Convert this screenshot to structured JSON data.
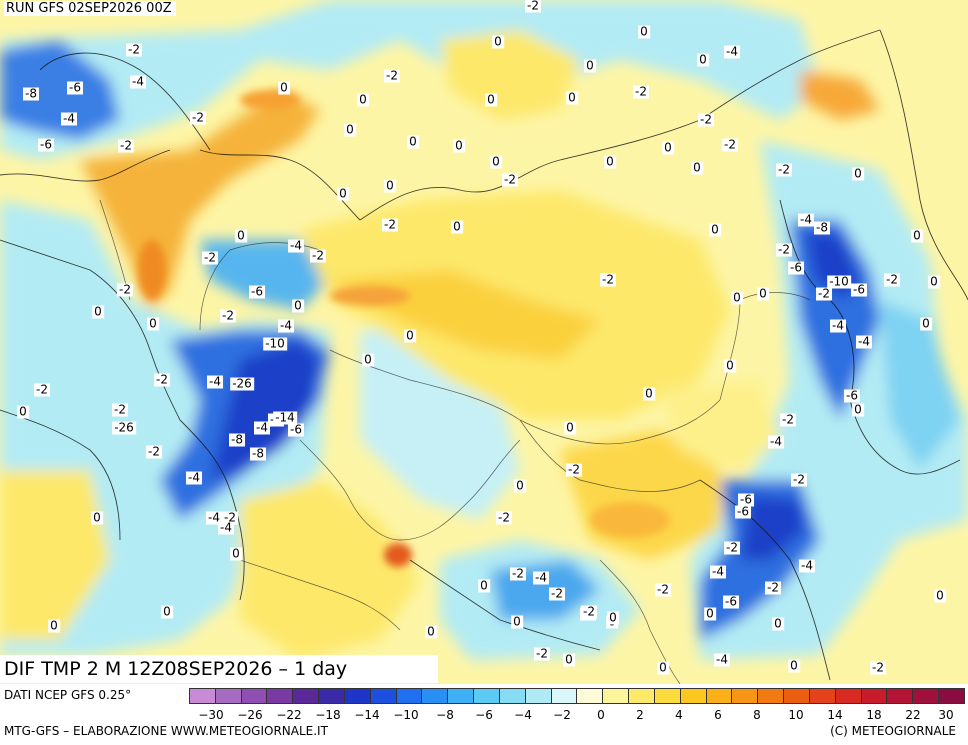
{
  "header": {
    "run_label": "RUN GFS 02SEP2026 00Z"
  },
  "field_title": "DIF TMP 2 M 12Z08SEP2026 – 1 day",
  "footer": {
    "source": "DATI NCEP GFS 0.25°",
    "credit": "MTG-GFS – ELABORAZIONE WWW.METEOGIORNALE.IT",
    "copyright": "(C) METEOGIORNALE"
  },
  "legend": {
    "colors": [
      "#c78bd6",
      "#a66cc2",
      "#8f4fb2",
      "#7a3aa3",
      "#5a2a9a",
      "#3a2aa8",
      "#1f34c8",
      "#1e50e0",
      "#1f6ff0",
      "#2a8ff5",
      "#3fb0f5",
      "#5ccaf2",
      "#86dcf2",
      "#b0eaf5",
      "#d9f6f8",
      "#fdfcd8",
      "#fdf59a",
      "#fde96a",
      "#fcdc3c",
      "#fcc81f",
      "#f9b019",
      "#f79616",
      "#f17a12",
      "#eb5e10",
      "#e3421a",
      "#d82a22",
      "#c81c2c",
      "#b41434",
      "#a0103c",
      "#8a0c40"
    ],
    "tick_labels": [
      "-30",
      "-26",
      "-22",
      "-18",
      "-14",
      "-10",
      "-8",
      "-6",
      "-4",
      "-2",
      "0",
      "2",
      "4",
      "6",
      "8",
      "10",
      "14",
      "18",
      "22",
      "30"
    ]
  },
  "map": {
    "labels": [
      {
        "text": "-2"
      },
      {
        "text": "-2"
      },
      {
        "text": "0"
      },
      {
        "text": "-2"
      },
      {
        "text": "0"
      },
      {
        "text": "-4"
      },
      {
        "text": "0"
      },
      {
        "text": "-4"
      },
      {
        "text": "0"
      },
      {
        "text": "-8"
      },
      {
        "text": "-6"
      },
      {
        "text": "-2"
      },
      {
        "text": "0"
      },
      {
        "text": "-4"
      },
      {
        "text": "0"
      },
      {
        "text": "-2"
      },
      {
        "text": "0"
      },
      {
        "text": "-2"
      },
      {
        "text": "0"
      },
      {
        "text": "-2"
      },
      {
        "text": "0"
      },
      {
        "text": "-6"
      },
      {
        "text": "-2"
      },
      {
        "text": "0"
      },
      {
        "text": "0"
      },
      {
        "text": "-2"
      },
      {
        "text": "0"
      },
      {
        "text": "0"
      },
      {
        "text": "-2"
      },
      {
        "text": "0"
      },
      {
        "text": "0"
      },
      {
        "text": "-2"
      },
      {
        "text": "0"
      },
      {
        "text": "0"
      },
      {
        "text": "-4"
      },
      {
        "text": "-8"
      },
      {
        "text": "0"
      },
      {
        "text": "-2"
      },
      {
        "text": "0"
      },
      {
        "text": "0"
      },
      {
        "text": "-2"
      },
      {
        "text": "0"
      },
      {
        "text": "-2"
      },
      {
        "text": "0"
      },
      {
        "text": "-4"
      },
      {
        "text": "-2"
      },
      {
        "text": "-2"
      },
      {
        "text": "-6"
      },
      {
        "text": "0"
      },
      {
        "text": "-2"
      },
      {
        "text": "-2"
      },
      {
        "text": "-10"
      },
      {
        "text": "0"
      },
      {
        "text": "0"
      },
      {
        "text": "-6"
      },
      {
        "text": "0"
      },
      {
        "text": "-6"
      },
      {
        "text": "0"
      },
      {
        "text": "0"
      },
      {
        "text": "0"
      },
      {
        "text": "0"
      },
      {
        "text": "-4"
      },
      {
        "text": "-2"
      },
      {
        "text": "-4"
      },
      {
        "text": "-10"
      },
      {
        "text": "0"
      },
      {
        "text": "0"
      },
      {
        "text": "-4"
      },
      {
        "text": "-2"
      },
      {
        "text": "-4"
      },
      {
        "text": "-26"
      },
      {
        "text": "-6"
      },
      {
        "text": "0"
      },
      {
        "text": "-2"
      },
      {
        "text": "0"
      },
      {
        "text": "-2"
      },
      {
        "text": "-4"
      },
      {
        "text": "-14"
      },
      {
        "text": "-2"
      },
      {
        "text": "-26"
      },
      {
        "text": "-4"
      },
      {
        "text": "-6"
      },
      {
        "text": "0"
      },
      {
        "text": "-8"
      },
      {
        "text": "-2"
      },
      {
        "text": "-8"
      },
      {
        "text": "-4"
      },
      {
        "text": "-2"
      },
      {
        "text": "-4"
      },
      {
        "text": "0"
      },
      {
        "text": "-2"
      },
      {
        "text": "0"
      },
      {
        "text": "-2"
      },
      {
        "text": "-4"
      },
      {
        "text": "-6"
      },
      {
        "text": "-6"
      },
      {
        "text": "0"
      },
      {
        "text": "-2"
      },
      {
        "text": "0"
      },
      {
        "text": "-2"
      },
      {
        "text": "-4"
      },
      {
        "text": "-2"
      },
      {
        "text": "-4"
      },
      {
        "text": "0"
      },
      {
        "text": "-2"
      },
      {
        "text": "-2"
      },
      {
        "text": "-6"
      },
      {
        "text": "-2"
      },
      {
        "text": "-4"
      },
      {
        "text": "-2"
      },
      {
        "text": "-4"
      },
      {
        "text": "0"
      },
      {
        "text": "0"
      },
      {
        "text": "-2"
      },
      {
        "text": "0"
      },
      {
        "text": "0"
      },
      {
        "text": "0"
      },
      {
        "text": "0"
      },
      {
        "text": "-2"
      },
      {
        "text": "0"
      },
      {
        "text": "0"
      },
      {
        "text": "0"
      },
      {
        "text": "-4"
      },
      {
        "text": "0"
      },
      {
        "text": "0"
      },
      {
        "text": "-2"
      },
      {
        "text": "0"
      }
    ]
  }
}
